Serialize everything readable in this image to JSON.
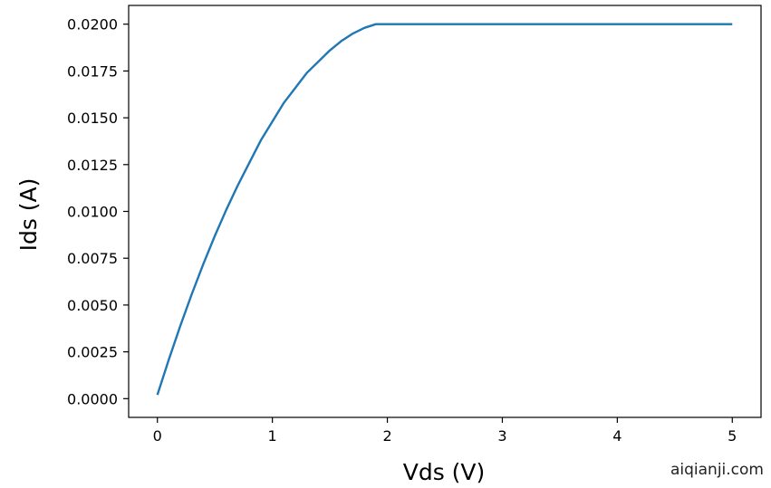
{
  "chart_data": {
    "type": "line",
    "title": "",
    "xlabel": "Vds (V)",
    "ylabel": "Ids (A)",
    "xlim": [
      -0.25,
      5.25
    ],
    "ylim": [
      -0.001,
      0.021
    ],
    "xticks": [
      0,
      1,
      2,
      3,
      4,
      5
    ],
    "xtick_labels": [
      "0",
      "1",
      "2",
      "3",
      "4",
      "5"
    ],
    "yticks": [
      0.0,
      0.0025,
      0.005,
      0.0075,
      0.01,
      0.0125,
      0.015,
      0.0175,
      0.02
    ],
    "ytick_labels": [
      "0.0000",
      "0.0025",
      "0.0050",
      "0.0075",
      "0.0100",
      "0.0125",
      "0.0150",
      "0.0175",
      "0.0200"
    ],
    "grid": false,
    "series": [
      {
        "color": "#1f77b4",
        "x": [
          0.0,
          0.1,
          0.2,
          0.3,
          0.4,
          0.5,
          0.6,
          0.7,
          0.8,
          0.9,
          1.0,
          1.1,
          1.2,
          1.3,
          1.4,
          1.5,
          1.6,
          1.7,
          1.8,
          1.9,
          2.0,
          2.5,
          3.0,
          3.5,
          4.0,
          4.5,
          5.0
        ],
        "y": [
          0.0002,
          0.0021,
          0.0039,
          0.0056,
          0.0072,
          0.0087,
          0.0101,
          0.0114,
          0.0126,
          0.0138,
          0.0148,
          0.0158,
          0.0166,
          0.0174,
          0.018,
          0.0186,
          0.0191,
          0.0195,
          0.0198,
          0.02,
          0.02,
          0.02,
          0.02,
          0.02,
          0.02,
          0.02,
          0.02
        ]
      }
    ]
  },
  "watermark": "aiqianji.com"
}
